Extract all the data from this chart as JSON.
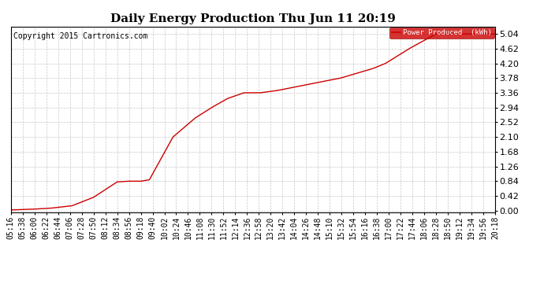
{
  "title": "Daily Energy Production Thu Jun 11 20:19",
  "copyright": "Copyright 2015 Cartronics.com",
  "legend_label": "Power Produced  (kWh)",
  "line_color": "#cc0000",
  "legend_bg": "#cc0000",
  "legend_text_color": "#ffffff",
  "bg_color": "#ffffff",
  "grid_color": "#c8c8c8",
  "yticks": [
    0.0,
    0.42,
    0.84,
    1.26,
    1.68,
    2.1,
    2.52,
    2.94,
    3.36,
    3.78,
    4.2,
    4.62,
    5.04
  ],
  "ymax": 5.25,
  "ymin": -0.05,
  "keypoints_min": [
    316,
    355,
    390,
    430,
    470,
    514,
    534,
    558,
    574,
    618,
    660,
    690,
    720,
    750,
    780,
    810,
    870,
    930,
    990,
    1014,
    1058,
    1108,
    1130,
    1218
  ],
  "keypoints_val": [
    0.02,
    0.04,
    0.07,
    0.14,
    0.38,
    0.82,
    0.84,
    0.84,
    0.88,
    2.1,
    2.65,
    2.94,
    3.2,
    3.36,
    3.36,
    3.42,
    3.6,
    3.78,
    4.05,
    4.2,
    4.62,
    5.04,
    5.04,
    5.04
  ],
  "x_tick_labels": [
    "05:16",
    "05:38",
    "06:00",
    "06:22",
    "06:44",
    "07:06",
    "07:28",
    "07:50",
    "08:12",
    "08:34",
    "08:56",
    "09:18",
    "09:40",
    "10:02",
    "10:24",
    "10:46",
    "11:08",
    "11:30",
    "11:52",
    "12:14",
    "12:36",
    "12:58",
    "13:20",
    "13:42",
    "14:04",
    "14:26",
    "14:48",
    "15:10",
    "15:32",
    "15:54",
    "16:16",
    "16:38",
    "17:00",
    "17:22",
    "17:44",
    "18:06",
    "18:28",
    "18:50",
    "19:12",
    "19:34",
    "19:56",
    "20:18"
  ],
  "title_fontsize": 11,
  "copyright_fontsize": 7,
  "tick_fontsize": 7,
  "ytick_fontsize": 8
}
